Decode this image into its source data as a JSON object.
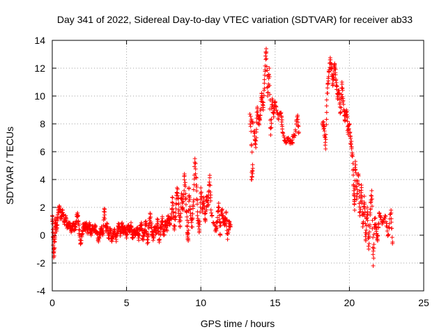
{
  "chart_data": {
    "type": "scatter",
    "title": "Day 341 of 2022, Sidereal Day-to-day VTEC variation (SDTVAR) for receiver ab33",
    "xlabel": "GPS time / hours",
    "ylabel": "SDTVAR / TECUs",
    "xlim": [
      0,
      25
    ],
    "ylim": [
      -4,
      14
    ],
    "xticks": [
      "0",
      "5",
      "10",
      "15",
      "20",
      "25"
    ],
    "yticks": [
      "-4",
      "-2",
      "0",
      "2",
      "4",
      "6",
      "8",
      "10",
      "12",
      "14"
    ],
    "grid": true,
    "marker": "plus",
    "color": "#ff0000",
    "series": [
      {
        "name": "SDTVAR",
        "trace": [
          [
            0.0,
            1.4
          ],
          [
            0.05,
            0.2
          ],
          [
            0.1,
            -1.6
          ],
          [
            0.15,
            -0.5
          ],
          [
            0.2,
            0.6
          ],
          [
            0.25,
            1.2
          ],
          [
            0.3,
            0.3
          ],
          [
            0.4,
            1.6
          ],
          [
            0.5,
            2.0
          ],
          [
            0.6,
            1.2
          ],
          [
            0.7,
            1.8
          ],
          [
            0.8,
            0.9
          ],
          [
            0.9,
            1.4
          ],
          [
            1.0,
            0.5
          ],
          [
            1.1,
            0.9
          ],
          [
            1.2,
            0.6
          ],
          [
            1.3,
            0.3
          ],
          [
            1.4,
            0.8
          ],
          [
            1.5,
            0.4
          ],
          [
            1.6,
            0.9
          ],
          [
            1.7,
            1.6
          ],
          [
            1.8,
            0.4
          ],
          [
            1.9,
            -0.6
          ],
          [
            2.0,
            0.0
          ],
          [
            2.1,
            0.8
          ],
          [
            2.2,
            0.5
          ],
          [
            2.3,
            0.9
          ],
          [
            2.4,
            0.2
          ],
          [
            2.5,
            0.9
          ],
          [
            2.6,
            0.1
          ],
          [
            2.7,
            0.5
          ],
          [
            2.8,
            0.3
          ],
          [
            2.9,
            0.6
          ],
          [
            3.0,
            0.2
          ],
          [
            3.1,
            -0.3
          ],
          [
            3.2,
            0.2
          ],
          [
            3.3,
            0.5
          ],
          [
            3.4,
            0.0
          ],
          [
            3.5,
            1.9
          ],
          [
            3.6,
            0.3
          ],
          [
            3.7,
            0.8
          ],
          [
            3.8,
            -0.2
          ],
          [
            3.9,
            0.4
          ],
          [
            4.0,
            -0.4
          ],
          [
            4.1,
            0.0
          ],
          [
            4.2,
            0.3
          ],
          [
            4.3,
            -0.3
          ],
          [
            4.4,
            0.4
          ],
          [
            4.5,
            0.8
          ],
          [
            4.6,
            0.1
          ],
          [
            4.7,
            0.9
          ],
          [
            4.8,
            0.2
          ],
          [
            4.9,
            0.6
          ],
          [
            5.0,
            -0.2
          ],
          [
            5.1,
            0.7
          ],
          [
            5.2,
            0.3
          ],
          [
            5.3,
            0.9
          ],
          [
            5.4,
            -0.2
          ],
          [
            5.5,
            0.4
          ],
          [
            5.6,
            0.0
          ],
          [
            5.7,
            0.5
          ],
          [
            5.8,
            -0.2
          ],
          [
            5.9,
            0.4
          ],
          [
            6.0,
            0.9
          ],
          [
            6.1,
            -0.3
          ],
          [
            6.2,
            0.3
          ],
          [
            6.3,
            1.0
          ],
          [
            6.4,
            -0.6
          ],
          [
            6.5,
            0.5
          ],
          [
            6.6,
            1.5
          ],
          [
            6.7,
            0.2
          ],
          [
            6.8,
            -0.2
          ],
          [
            6.9,
            0.6
          ],
          [
            7.0,
            0.2
          ],
          [
            7.1,
            1.1
          ],
          [
            7.2,
            -0.5
          ],
          [
            7.3,
            0.5
          ],
          [
            7.4,
            1.2
          ],
          [
            7.5,
            0.0
          ],
          [
            7.6,
            1.0
          ],
          [
            7.7,
            0.4
          ],
          [
            7.8,
            1.4
          ],
          [
            7.9,
            0.9
          ],
          [
            8.0,
            1.2
          ],
          [
            8.1,
            2.7
          ],
          [
            8.2,
            0.5
          ],
          [
            8.3,
            1.6
          ],
          [
            8.4,
            3.4
          ],
          [
            8.5,
            2.2
          ],
          [
            8.6,
            0.6
          ],
          [
            8.7,
            3.0
          ],
          [
            8.8,
            1.8
          ],
          [
            8.9,
            4.4
          ],
          [
            9.0,
            2.2
          ],
          [
            9.1,
            0.2
          ],
          [
            9.15,
            -0.4
          ],
          [
            9.2,
            3.4
          ],
          [
            9.3,
            1.6
          ],
          [
            9.4,
            0.6
          ],
          [
            9.5,
            2.4
          ],
          [
            9.6,
            5.5
          ],
          [
            9.7,
            3.6
          ],
          [
            9.8,
            1.2
          ],
          [
            9.9,
            0.3
          ],
          [
            10.0,
            3.4
          ],
          [
            10.1,
            1.8
          ],
          [
            10.2,
            2.6
          ],
          [
            10.3,
            1.0
          ],
          [
            10.4,
            2.8
          ],
          [
            10.5,
            2.2
          ],
          [
            10.6,
            4.3
          ],
          [
            10.7,
            1.6
          ],
          [
            11.0,
            0.4
          ],
          [
            11.1,
            0.9
          ],
          [
            11.2,
            2.3
          ],
          [
            11.3,
            0.0
          ],
          [
            11.4,
            1.8
          ],
          [
            11.5,
            1.2
          ],
          [
            11.6,
            0.8
          ],
          [
            11.7,
            1.6
          ],
          [
            11.8,
            -0.3
          ],
          [
            11.9,
            1.0
          ],
          [
            12.0,
            0.6
          ],
          [
            13.4,
            4.0
          ],
          [
            13.5,
            4.8
          ],
          [
            13.3,
            8.7
          ],
          [
            13.6,
            7.5
          ],
          [
            13.7,
            6.3
          ],
          [
            13.8,
            9.2
          ],
          [
            13.9,
            8.0
          ],
          [
            14.0,
            8.6
          ],
          [
            14.1,
            10.2
          ],
          [
            14.2,
            9.0
          ],
          [
            14.3,
            11.5
          ],
          [
            14.4,
            13.4
          ],
          [
            14.5,
            10.0
          ],
          [
            14.6,
            12.0
          ],
          [
            14.7,
            7.2
          ],
          [
            14.8,
            9.8
          ],
          [
            14.9,
            8.5
          ],
          [
            15.0,
            9.6
          ],
          [
            15.2,
            8.4
          ],
          [
            15.4,
            8.8
          ],
          [
            15.5,
            7.4
          ],
          [
            15.7,
            6.8
          ],
          [
            15.9,
            7.0
          ],
          [
            16.1,
            6.6
          ],
          [
            16.3,
            7.2
          ],
          [
            16.5,
            8.5
          ],
          [
            16.6,
            7.4
          ],
          [
            18.2,
            8.0
          ],
          [
            18.3,
            7.8
          ],
          [
            18.4,
            6.2
          ],
          [
            18.5,
            10.2
          ],
          [
            18.6,
            11.4
          ],
          [
            18.7,
            12.6
          ],
          [
            18.8,
            12.0
          ],
          [
            18.9,
            10.8
          ],
          [
            19.0,
            12.3
          ],
          [
            19.1,
            11.2
          ],
          [
            19.2,
            9.8
          ],
          [
            19.3,
            10.4
          ],
          [
            19.4,
            8.8
          ],
          [
            19.5,
            11.0
          ],
          [
            19.6,
            9.4
          ],
          [
            19.7,
            8.2
          ],
          [
            19.8,
            9.0
          ],
          [
            19.9,
            7.4
          ],
          [
            20.0,
            8.0
          ],
          [
            20.1,
            6.6
          ],
          [
            20.2,
            5.8
          ],
          [
            20.3,
            3.2
          ],
          [
            20.35,
            1.8
          ],
          [
            20.4,
            5.3
          ],
          [
            20.5,
            2.6
          ],
          [
            20.6,
            4.4
          ],
          [
            20.7,
            1.4
          ],
          [
            20.8,
            3.6
          ],
          [
            20.9,
            0.6
          ],
          [
            21.0,
            2.8
          ],
          [
            21.1,
            -0.4
          ],
          [
            21.2,
            2.0
          ],
          [
            21.3,
            -1.0
          ],
          [
            21.4,
            1.6
          ],
          [
            21.5,
            3.2
          ],
          [
            21.6,
            -2.2
          ],
          [
            21.7,
            1.2
          ],
          [
            21.8,
            0.4
          ],
          [
            21.9,
            -0.4
          ],
          [
            22.0,
            1.6
          ],
          [
            22.2,
            0.8
          ],
          [
            22.4,
            1.4
          ],
          [
            22.6,
            0.0
          ],
          [
            22.8,
            1.8
          ],
          [
            22.9,
            -0.6
          ]
        ]
      }
    ]
  }
}
